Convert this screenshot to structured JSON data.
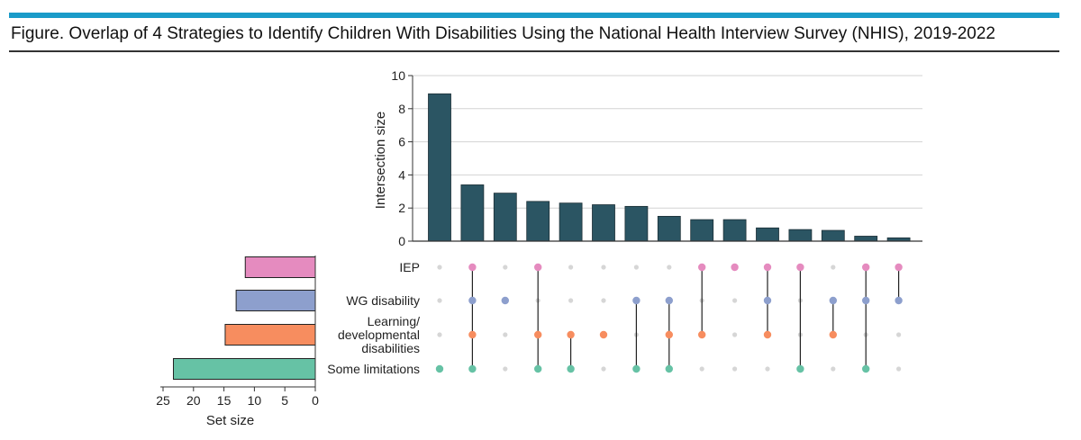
{
  "figure": {
    "title": "Figure. Overlap of 4 Strategies to Identify Children With Disabilities Using the National Health Interview Survey (NHIS), 2019-2022"
  },
  "chart_data": {
    "type": "bar",
    "subtype": "upset",
    "title": "Figure. Overlap of 4 Strategies to Identify Children With Disabilities Using the National Health Interview Survey (NHIS), 2019-2022",
    "ylabel": "Intersection size",
    "ylim": [
      0,
      10
    ],
    "yticks": [
      "0",
      "2",
      "4",
      "6",
      "8",
      "10"
    ],
    "grid": true,
    "bar_color": "#2b5563",
    "intersection_values": [
      8.9,
      3.4,
      2.9,
      2.4,
      2.3,
      2.2,
      2.1,
      1.5,
      1.3,
      1.3,
      0.8,
      0.7,
      0.65,
      0.3,
      0.2
    ],
    "sets": [
      {
        "name": "IEP",
        "label_lines": [
          "IEP"
        ],
        "color": "#e58bbf",
        "size": 11.5
      },
      {
        "name": "WG disability",
        "label_lines": [
          "WG disability"
        ],
        "color": "#8d9fcd",
        "size": 13
      },
      {
        "name": "Learning/ developmental disabilities",
        "label_lines": [
          "Learning/",
          "developmental",
          "disabilities"
        ],
        "color": "#f78d5f",
        "size": 14.8
      },
      {
        "name": "Some limitations",
        "label_lines": [
          "Some limitations"
        ],
        "color": "#66c2a5",
        "size": 23.3
      }
    ],
    "membership": [
      [
        3
      ],
      [
        0,
        1,
        2,
        3
      ],
      [
        1
      ],
      [
        0,
        2,
        3
      ],
      [
        2,
        3
      ],
      [
        2
      ],
      [
        1,
        3
      ],
      [
        1,
        2,
        3
      ],
      [
        0,
        2
      ],
      [
        0
      ],
      [
        0,
        1,
        2
      ],
      [
        0,
        3
      ],
      [
        1,
        2
      ],
      [
        0,
        1,
        3
      ],
      [
        0,
        1
      ]
    ],
    "set_size_axis": {
      "label": "Set size",
      "xlim": [
        0,
        25
      ],
      "ticks": [
        "25",
        "20",
        "15",
        "10",
        "5",
        "0"
      ],
      "reversed": true
    }
  }
}
